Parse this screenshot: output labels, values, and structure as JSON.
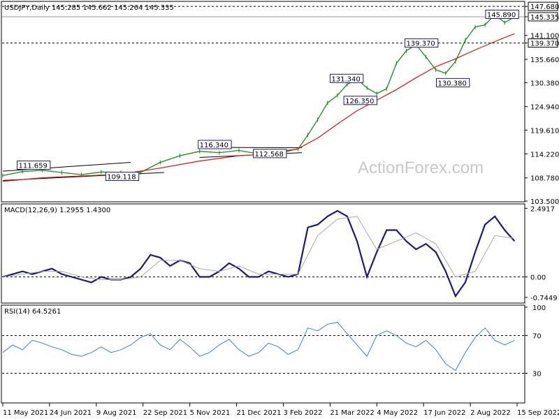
{
  "chart_data": [
    {
      "type": "line",
      "pane": "price",
      "title": "USDJPY,Daily  145.285 145.662 145.264 145.335",
      "last_price_label": "145.335",
      "watermark": "ActionForex.com",
      "y_ticks": [
        "147.680",
        "145.335",
        "141.100",
        "139.370",
        "135.660",
        "130.380",
        "124.940",
        "119.610",
        "114.220",
        "108.780",
        "103.500"
      ],
      "ylim": [
        103.5,
        148.5
      ],
      "x_ticks": [
        "11 May 2021",
        "24 Jun 2021",
        "9 Aug 2021",
        "22 Sep 2021",
        "5 Nov 2021",
        "21 Dec 2021",
        "3 Feb 2022",
        "21 Mar 2022",
        "4 May 2022",
        "17 Jun 2022",
        "2 Aug 2022",
        "15 Sep 2022"
      ],
      "levels": [
        {
          "value": 147.68,
          "label": "147.680",
          "style": "dotted"
        },
        {
          "value": 139.37,
          "label": "139.370",
          "style": "dotted"
        }
      ],
      "annotations": [
        {
          "text": "111.659",
          "x": 8,
          "y": 111.66
        },
        {
          "text": "109.118",
          "x": 53,
          "y": 109.12
        },
        {
          "text": "116.340",
          "x": 100,
          "y": 116.34
        },
        {
          "text": "112.568",
          "x": 128,
          "y": 114.3
        },
        {
          "text": "131.340",
          "x": 167,
          "y": 131.34
        },
        {
          "text": "126.350",
          "x": 174,
          "y": 126.35
        },
        {
          "text": "139.370",
          "x": 205,
          "y": 139.37
        },
        {
          "text": "130.380",
          "x": 221,
          "y": 130.38
        },
        {
          "text": "145.890",
          "x": 246,
          "y": 145.89
        }
      ],
      "series": [
        {
          "name": "",
          "color": "#1a8a1a",
          "x": [
            0,
            10,
            20,
            30,
            40,
            50,
            60,
            70,
            80,
            90,
            100,
            110,
            120,
            130,
            140,
            150,
            155,
            160,
            165,
            170,
            175,
            180,
            185,
            190,
            195,
            200,
            205,
            210,
            215,
            220,
            225,
            230,
            235,
            240,
            245,
            250,
            255,
            260
          ],
          "values": [
            109.3,
            110.2,
            110.5,
            110.0,
            109.5,
            110.1,
            110.0,
            110.0,
            112.3,
            113.8,
            114.8,
            114.5,
            115.0,
            114.2,
            114.8,
            115.3,
            118.5,
            122.0,
            125.8,
            127.5,
            130.0,
            131.2,
            129.2,
            127.9,
            129.0,
            134.8,
            137.6,
            139.0,
            136.2,
            133.3,
            132.5,
            135.2,
            140.0,
            143.0,
            143.5,
            145.8,
            144.0,
            145.3
          ]
        },
        {
          "name": "",
          "color": "#dd1111",
          "x": [
            0,
            20,
            40,
            60,
            80,
            100,
            120,
            140,
            150,
            160,
            170,
            180,
            190,
            200,
            210,
            220,
            230,
            240,
            250,
            260
          ],
          "values": [
            108.0,
            108.8,
            109.2,
            109.6,
            111.0,
            112.6,
            113.8,
            114.3,
            115.4,
            117.8,
            121.0,
            124.0,
            126.4,
            128.8,
            131.5,
            134.0,
            135.8,
            137.8,
            139.7,
            141.5
          ]
        }
      ],
      "trend_lines": [
        {
          "from": [
            0,
            110.3
          ],
          "to": [
            65,
            112.3
          ]
        },
        {
          "from": [
            0,
            108.2
          ],
          "to": [
            82,
            110.0
          ]
        },
        {
          "from": [
            100,
            115.7
          ],
          "to": [
            152,
            115.6
          ]
        },
        {
          "from": [
            100,
            113.4
          ],
          "to": [
            152,
            114.5
          ]
        }
      ]
    },
    {
      "type": "line",
      "pane": "macd",
      "title": "MACD(12,26,9) 1.2955 1.4300",
      "y_ticks": [
        "2.4917",
        "0.00",
        "-0.7449"
      ],
      "ylim": [
        -0.9,
        2.55
      ],
      "zero_line": 0,
      "series": [
        {
          "name": "",
          "color": "#1a1a7a",
          "x": [
            0,
            5,
            10,
            15,
            20,
            25,
            30,
            35,
            40,
            45,
            50,
            55,
            60,
            65,
            70,
            75,
            80,
            85,
            90,
            95,
            100,
            105,
            110,
            115,
            120,
            125,
            130,
            135,
            140,
            145,
            150,
            155,
            160,
            165,
            170,
            175,
            180,
            185,
            190,
            195,
            200,
            205,
            210,
            215,
            220,
            225,
            230,
            235,
            240,
            245,
            250,
            255,
            260
          ],
          "values": [
            0.0,
            0.1,
            0.2,
            0.1,
            0.2,
            0.3,
            0.1,
            0.0,
            -0.1,
            -0.2,
            0.0,
            -0.1,
            -0.1,
            0.0,
            0.3,
            0.8,
            0.7,
            0.4,
            0.6,
            0.5,
            0.0,
            0.0,
            0.2,
            0.5,
            0.3,
            0.0,
            0.0,
            0.2,
            0.1,
            0.0,
            0.1,
            1.8,
            1.9,
            2.2,
            2.4,
            2.2,
            1.3,
            0.0,
            0.9,
            1.7,
            1.7,
            1.3,
            1.0,
            1.2,
            0.9,
            0.2,
            -0.7,
            -0.2,
            0.9,
            1.9,
            2.2,
            1.7,
            1.3
          ]
        },
        {
          "name": "",
          "color": "#a8a8a8",
          "x": [
            0,
            10,
            20,
            30,
            40,
            50,
            60,
            70,
            80,
            90,
            100,
            110,
            120,
            130,
            140,
            150,
            160,
            170,
            180,
            190,
            200,
            210,
            220,
            230,
            240,
            250,
            260
          ],
          "values": [
            0.0,
            0.1,
            0.2,
            0.2,
            0.0,
            -0.1,
            -0.1,
            0.0,
            0.6,
            0.6,
            0.3,
            0.2,
            0.4,
            0.1,
            0.1,
            0.1,
            1.5,
            2.1,
            2.2,
            1.0,
            1.3,
            1.6,
            1.2,
            0.0,
            0.2,
            1.5,
            1.4
          ]
        }
      ]
    },
    {
      "type": "line",
      "pane": "rsi",
      "title": "RSI(14) 64.5261",
      "y_ticks": [
        "100",
        "70",
        "30"
      ],
      "ylim": [
        0,
        100
      ],
      "levels": [
        {
          "value": 70,
          "style": "dotted"
        },
        {
          "value": 30,
          "style": "dotted"
        }
      ],
      "series": [
        {
          "name": "",
          "color": "#3a7fd0",
          "x": [
            0,
            5,
            10,
            15,
            20,
            25,
            30,
            35,
            40,
            45,
            50,
            55,
            60,
            65,
            70,
            75,
            80,
            85,
            90,
            95,
            100,
            105,
            110,
            115,
            120,
            125,
            130,
            135,
            140,
            145,
            150,
            155,
            160,
            165,
            170,
            175,
            180,
            185,
            190,
            195,
            200,
            205,
            210,
            215,
            220,
            225,
            230,
            235,
            240,
            245,
            250,
            255,
            260
          ],
          "values": [
            52,
            60,
            55,
            65,
            62,
            58,
            55,
            50,
            48,
            52,
            58,
            52,
            55,
            60,
            68,
            72,
            60,
            55,
            66,
            58,
            48,
            52,
            60,
            66,
            55,
            48,
            52,
            62,
            58,
            50,
            55,
            78,
            75,
            82,
            84,
            72,
            60,
            48,
            70,
            75,
            70,
            62,
            58,
            65,
            55,
            40,
            33,
            52,
            68,
            78,
            65,
            60,
            65
          ]
        }
      ]
    }
  ]
}
